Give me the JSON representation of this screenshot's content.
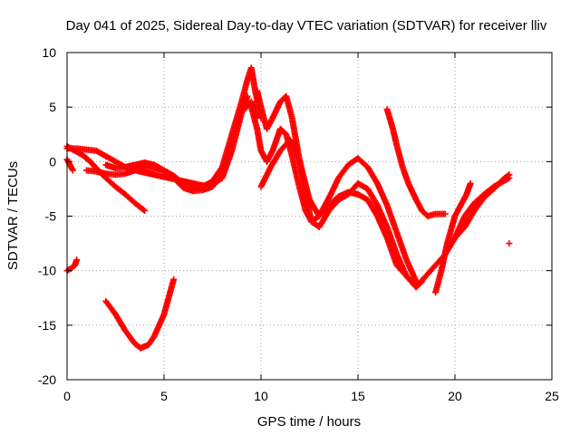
{
  "chart_data": {
    "type": "scatter",
    "title": "Day 041 of 2025, Sidereal Day-to-day VTEC variation (SDTVAR) for receiver lliv",
    "xlabel": "GPS time / hours",
    "ylabel": "SDTVAR / TECUs",
    "xlim": [
      0,
      25
    ],
    "ylim": [
      -20,
      10
    ],
    "xticks": [
      "0",
      "5",
      "10",
      "15",
      "20",
      "25"
    ],
    "yticks": [
      "-20",
      "-15",
      "-10",
      "-5",
      "0",
      "5",
      "10"
    ],
    "grid": true,
    "marker": "+",
    "color": "#ff0000",
    "series": [
      {
        "x": [
          0.0,
          0.5,
          1.0,
          1.5,
          2.0,
          2.5,
          3.0,
          3.5,
          4.0,
          4.5,
          5.0,
          5.5,
          6.0,
          6.5,
          7.0,
          7.5,
          8.0,
          8.5,
          9.0,
          9.3
        ],
        "y": [
          1.2,
          1.2,
          1.1,
          1.0,
          0.5,
          0.0,
          -0.5,
          -0.8,
          -1.0,
          -1.2,
          -1.4,
          -1.6,
          -1.8,
          -2.0,
          -2.2,
          -2.1,
          -1.5,
          1.0,
          4.5,
          6.0
        ]
      },
      {
        "x": [
          0.0,
          0.4,
          0.8,
          1.2,
          1.6,
          2.0,
          2.5,
          3.0,
          3.5,
          4.0
        ],
        "y": [
          1.4,
          1.0,
          0.6,
          0.0,
          -0.8,
          -1.5,
          -2.3,
          -3.0,
          -3.8,
          -4.5
        ]
      },
      {
        "x": [
          0.0,
          0.15,
          0.3
        ],
        "y": [
          0.2,
          -0.3,
          -0.8
        ]
      },
      {
        "x": [
          1.0,
          1.5,
          2.0,
          2.5,
          3.0,
          3.5,
          4.0,
          4.5,
          5.0,
          5.5,
          6.0,
          6.5,
          7.0,
          7.5,
          8.0,
          8.5,
          9.0,
          9.3,
          9.5,
          9.7,
          10.0
        ],
        "y": [
          -0.8,
          -0.9,
          -1.1,
          -1.2,
          -1.1,
          -0.8,
          -0.5,
          -0.6,
          -0.8,
          -1.3,
          -2.0,
          -2.5,
          -2.3,
          -1.8,
          -0.5,
          2.5,
          5.5,
          7.5,
          8.6,
          6.5,
          4.0
        ]
      },
      {
        "x": [
          2.0,
          2.5,
          3.0,
          3.5,
          4.0,
          4.5,
          5.0,
          5.5,
          6.0,
          6.5,
          7.0,
          7.5,
          8.0,
          8.5,
          9.0,
          9.5,
          9.8
        ],
        "y": [
          -0.3,
          -0.6,
          -0.5,
          -0.3,
          -0.1,
          -0.3,
          -0.8,
          -1.5,
          -2.4,
          -2.7,
          -2.6,
          -2.3,
          -1.0,
          2.0,
          4.5,
          5.5,
          4.0
        ]
      },
      {
        "x": [
          0.0,
          0.2,
          0.4,
          0.5
        ],
        "y": [
          -10.0,
          -9.8,
          -9.5,
          -9.0
        ]
      },
      {
        "x": [
          2.0,
          2.5,
          3.0,
          3.5,
          3.8,
          4.2,
          4.5,
          5.0,
          5.5
        ],
        "y": [
          -12.8,
          -14.0,
          -15.5,
          -16.7,
          -17.1,
          -16.8,
          -16.0,
          -14.0,
          -10.8
        ]
      },
      {
        "x": [
          9.5,
          9.8,
          10.0,
          10.3,
          10.6,
          11.0,
          11.3,
          11.6,
          12.0,
          12.3,
          12.6,
          13.0,
          13.3,
          13.6,
          14.0,
          14.5,
          15.0,
          15.5,
          16.0,
          16.5,
          17.0,
          17.5,
          18.0
        ],
        "y": [
          5.0,
          3.0,
          1.0,
          0.0,
          1.0,
          3.0,
          2.5,
          0.5,
          -2.5,
          -4.5,
          -5.5,
          -5.0,
          -4.0,
          -3.0,
          -1.5,
          -0.3,
          0.3,
          -0.5,
          -2.0,
          -4.0,
          -6.5,
          -9.0,
          -11.0
        ]
      },
      {
        "x": [
          9.8,
          10.0,
          10.3,
          10.6,
          11.0,
          11.3,
          11.6,
          12.0,
          12.3,
          12.6,
          13.0,
          13.5,
          14.0,
          14.5,
          15.0,
          15.5,
          16.0,
          16.5,
          17.0,
          17.5,
          18.0,
          18.3
        ],
        "y": [
          6.5,
          5.0,
          3.0,
          4.0,
          5.5,
          6.0,
          4.0,
          0.0,
          -3.0,
          -5.5,
          -6.0,
          -4.5,
          -3.5,
          -3.0,
          -2.0,
          -2.5,
          -4.0,
          -6.0,
          -8.5,
          -10.5,
          -11.5,
          -11.0
        ]
      },
      {
        "x": [
          10.0,
          10.5,
          11.0,
          11.5,
          12.0,
          12.5,
          13.0,
          13.5,
          14.0,
          14.5,
          15.0,
          15.5,
          16.0,
          16.5,
          17.0,
          17.5,
          18.0
        ],
        "y": [
          -2.3,
          -0.5,
          1.0,
          2.0,
          0.0,
          -3.5,
          -5.0,
          -4.0,
          -3.2,
          -2.8,
          -3.0,
          -3.5,
          -5.0,
          -7.0,
          -9.5,
          -10.5,
          -11.5
        ]
      },
      {
        "x": [
          16.5,
          16.8,
          17.0,
          17.3,
          17.6,
          18.0,
          18.3,
          18.6,
          19.0,
          19.5
        ],
        "y": [
          4.8,
          3.0,
          1.5,
          -0.5,
          -2.0,
          -3.5,
          -4.5,
          -5.0,
          -4.8,
          -4.8
        ]
      },
      {
        "x": [
          17.0,
          17.5,
          18.0,
          18.5,
          19.0,
          19.5,
          20.0,
          20.5,
          21.0,
          21.5,
          22.0,
          22.5,
          22.8
        ],
        "y": [
          -9.0,
          -10.5,
          -11.5,
          -10.5,
          -9.5,
          -8.5,
          -7.0,
          -5.0,
          -3.8,
          -3.0,
          -2.3,
          -1.8,
          -1.5
        ]
      },
      {
        "x": [
          19.0,
          19.3,
          19.6,
          20.0,
          20.3,
          20.6,
          20.8
        ],
        "y": [
          -12.0,
          -10.0,
          -7.5,
          -5.0,
          -4.0,
          -3.0,
          -2.0
        ]
      },
      {
        "x": [
          20.0,
          20.5,
          21.0,
          21.5,
          22.0,
          22.5,
          22.8
        ],
        "y": [
          -7.0,
          -6.0,
          -4.5,
          -3.3,
          -2.5,
          -1.6,
          -1.2
        ]
      },
      {
        "x": [
          22.8
        ],
        "y": [
          -7.5
        ]
      }
    ]
  }
}
